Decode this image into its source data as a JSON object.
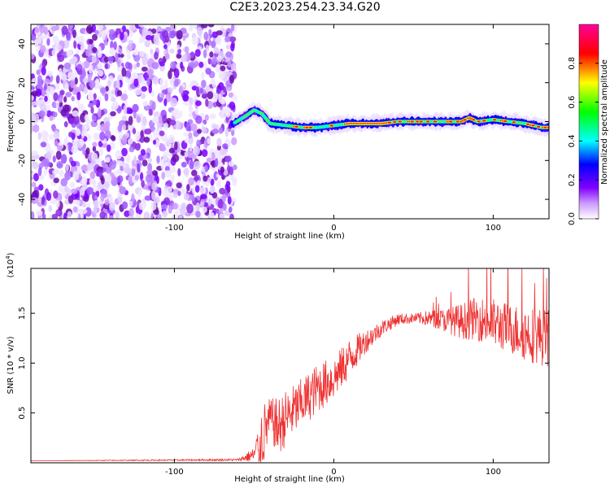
{
  "title": "C2E3.2023.254.23.34.G20",
  "chart_data": [
    {
      "id": "spectrogram",
      "type": "heatmap",
      "title": "",
      "xlabel": "Height of straight line (km)",
      "ylabel": "Frequency (Hz)",
      "xlim": [
        -190,
        135
      ],
      "ylim": [
        -50,
        50
      ],
      "xticks": [
        -100,
        0,
        100
      ],
      "yticks": [
        -40,
        -20,
        0,
        20,
        40
      ],
      "grid": false,
      "noise_region_x": [
        -190,
        -65
      ],
      "signal_track": {
        "x": [
          -65,
          -55,
          -50,
          -45,
          -40,
          -30,
          -20,
          -10,
          0,
          10,
          20,
          30,
          40,
          50,
          60,
          70,
          80,
          85,
          90,
          100,
          110,
          120,
          130,
          135
        ],
        "freq": [
          -2,
          3,
          6,
          4,
          -1,
          -2,
          -3,
          -3,
          -2,
          -1,
          -1,
          -1,
          0,
          0,
          0,
          0,
          0,
          2,
          0,
          1,
          0,
          -1,
          -3,
          -3
        ]
      },
      "colorbar": {
        "label": "Normalized spectral amplitude",
        "range": [
          0,
          1
        ],
        "ticks": [
          0.0,
          0.2,
          0.4,
          0.6,
          0.8
        ],
        "tick_labels": [
          "0.0",
          "0.2",
          "0.4",
          "0.6",
          "0.8"
        ],
        "colors": [
          "#ffffff",
          "#8000ff",
          "#0000ff",
          "#00ffff",
          "#00ff00",
          "#ffff00",
          "#ff0000",
          "#ff00aa"
        ]
      }
    },
    {
      "id": "snr",
      "type": "line",
      "title": "",
      "xlabel": "Height of straight line (km)",
      "ylabel": "SNR (10 * v/v)",
      "ylabel_multiplier": "(x10",
      "ylabel_multiplier_exp": "4",
      "ylabel_multiplier_close": ")",
      "xlim": [
        -190,
        135
      ],
      "ylim": [
        0,
        1.95
      ],
      "xticks": [
        -100,
        0,
        100
      ],
      "yticks": [
        0.5,
        1.0,
        1.5
      ],
      "ytick_labels": [
        "0.5",
        "1.0",
        "1.5"
      ],
      "grid": false,
      "series": [
        {
          "color": "#ee3333",
          "x": [
            -190,
            -60,
            -50,
            -45,
            -40,
            -35,
            -30,
            -20,
            -10,
            0,
            10,
            20,
            30,
            40,
            50,
            60,
            70,
            80,
            90,
            100,
            110,
            120,
            135
          ],
          "value": [
            0.02,
            0.03,
            0.08,
            0.25,
            0.45,
            0.35,
            0.45,
            0.6,
            0.75,
            0.85,
            1.05,
            1.22,
            1.35,
            1.44,
            1.45,
            1.45,
            1.43,
            1.42,
            1.45,
            1.4,
            1.35,
            1.3,
            1.25
          ],
          "noise_amplitude": [
            0.0,
            0.01,
            0.08,
            0.35,
            0.2,
            0.3,
            0.28,
            0.25,
            0.25,
            0.22,
            0.2,
            0.12,
            0.08,
            0.06,
            0.05,
            0.08,
            0.12,
            0.18,
            0.22,
            0.25,
            0.25,
            0.28,
            0.3
          ]
        }
      ]
    }
  ]
}
